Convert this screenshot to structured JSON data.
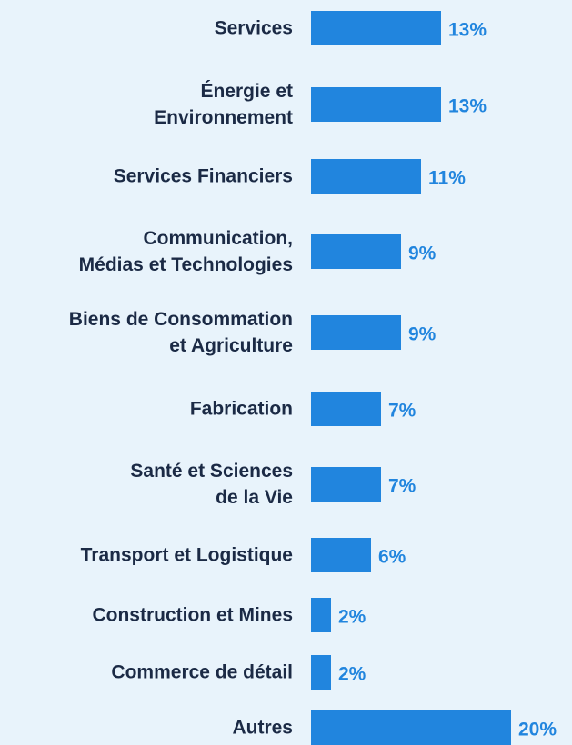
{
  "chart_data": {
    "type": "bar",
    "orientation": "horizontal",
    "color": "#2185de",
    "categories": [
      "Services",
      "Énergie et\nEnvironnement",
      "Services Financiers",
      "Communication,\nMédias et Technologies",
      "Biens de Consommation\net Agriculture",
      "Fabrication",
      "Santé et Sciences\nde la Vie",
      "Transport et Logistique",
      "Construction et Mines",
      "Commerce de détail",
      "Autres"
    ],
    "values": [
      13,
      13,
      11,
      9,
      9,
      7,
      7,
      6,
      2,
      2,
      20
    ],
    "value_labels": [
      "13%",
      "13%",
      "11%",
      "9%",
      "9%",
      "7%",
      "7%",
      "6%",
      "2%",
      "2%",
      "20%"
    ],
    "xlim": [
      0,
      20
    ]
  }
}
